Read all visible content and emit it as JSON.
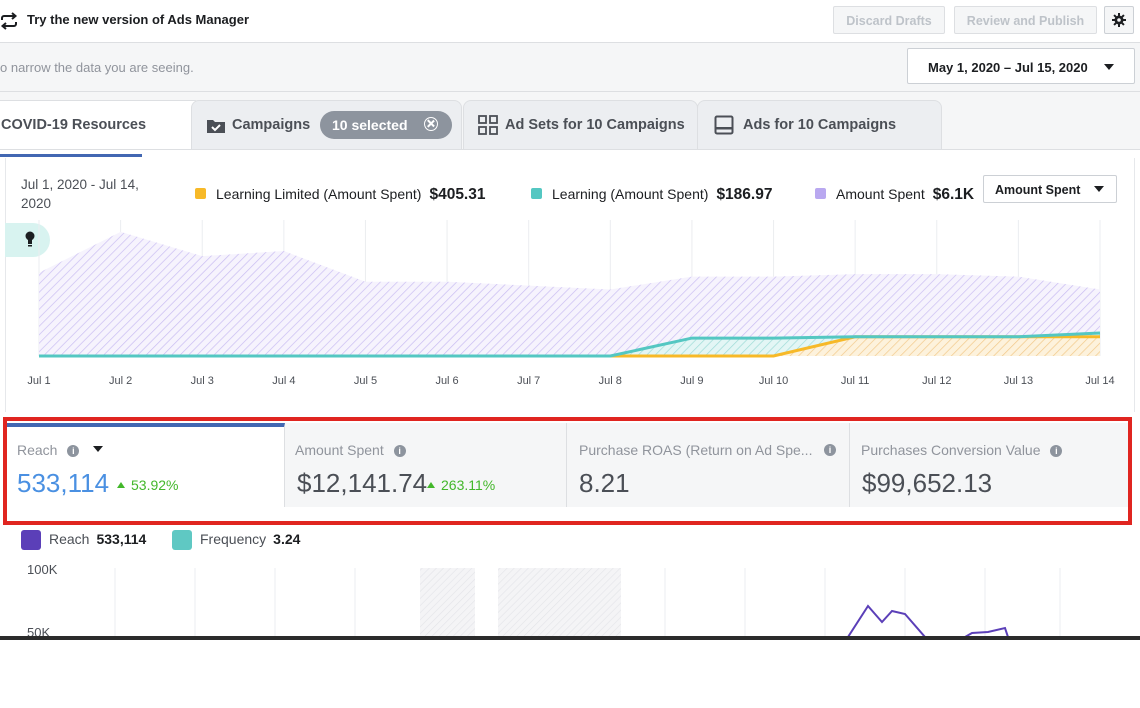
{
  "topbar": {
    "try_new": "Try the new version of Ads Manager",
    "discard": "Discard Drafts",
    "review": "Review and Publish",
    "settings_icon": "gear-icon"
  },
  "filter": {
    "hint": "o narrow the data you are seeing.",
    "date_range": "May 1, 2020 – Jul 15, 2020"
  },
  "tabs": [
    {
      "label": "COVID-19 Resources",
      "icon": ""
    },
    {
      "label": "Campaigns",
      "icon": "folder-check-icon",
      "pill": "10 selected"
    },
    {
      "label": "Ad Sets for 10 Campaigns",
      "icon": "grid-icon"
    },
    {
      "label": "Ads for 10 Campaigns",
      "icon": "ad-icon"
    }
  ],
  "chart_top": {
    "date_range": "Jul 1, 2020 - Jul 14, 2020",
    "metric_dropdown": "Amount Spent",
    "legend": [
      {
        "name": "Learning Limited (Amount Spent)",
        "value": "$405.31",
        "color": "#f7b928"
      },
      {
        "name": "Learning (Amount Spent)",
        "value": "$186.97",
        "color": "#54c7c2"
      },
      {
        "name": "Amount Spent",
        "value": "$6.1K",
        "color": "#a48fe8"
      }
    ]
  },
  "chart_data": {
    "type": "area",
    "x": [
      "Jul 1",
      "Jul 2",
      "Jul 3",
      "Jul 4",
      "Jul 5",
      "Jul 6",
      "Jul 7",
      "Jul 8",
      "Jul 9",
      "Jul 10",
      "Jul 11",
      "Jul 12",
      "Jul 13",
      "Jul 14"
    ],
    "series": [
      {
        "name": "Amount Spent",
        "color": "#a48fe8",
        "values": [
          0.65,
          0.97,
          0.78,
          0.82,
          0.58,
          0.58,
          0.55,
          0.52,
          0.62,
          0.62,
          0.64,
          0.64,
          0.62,
          0.52
        ]
      },
      {
        "name": "Learning (Amount Spent)",
        "color": "#54c7c2",
        "values": [
          0,
          0,
          0,
          0,
          0,
          0,
          0,
          0,
          0.14,
          0.14,
          0.15,
          0.15,
          0.15,
          0.18
        ]
      },
      {
        "name": "Learning Limited (Amount Spent)",
        "color": "#f7b928",
        "values": [
          0,
          0,
          0,
          0,
          0,
          0,
          0,
          0,
          0,
          0,
          0.15,
          0.15,
          0.15,
          0.15
        ]
      }
    ],
    "ylim": [
      0,
      1
    ]
  },
  "metrics": [
    {
      "title": "Reach",
      "value": "533,114",
      "delta": "53.92%"
    },
    {
      "title": "Amount Spent",
      "value": "$12,141.74",
      "delta": "263.11%"
    },
    {
      "title": "Purchase ROAS (Return on Ad Spe...",
      "value": "8.21",
      "delta": ""
    },
    {
      "title": "Purchases Conversion Value",
      "value": "$99,652.13",
      "delta": ""
    }
  ],
  "chart_bottom": {
    "legend": [
      {
        "name": "Reach",
        "value": "533,114",
        "color": "#5b3fb8"
      },
      {
        "name": "Frequency",
        "value": "3.24",
        "color": "#5fc8c3"
      }
    ],
    "y_ticks": [
      "100K",
      "50K"
    ]
  }
}
